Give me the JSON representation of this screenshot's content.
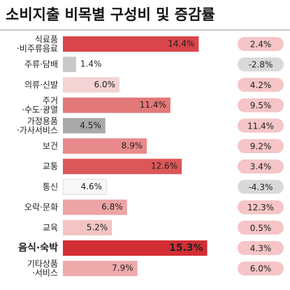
{
  "chart_data": {
    "type": "bar",
    "title": "소비지출 비목별 구성비 및 증감률",
    "categories": [
      "식료품\n·비주류음료",
      "주류·담배",
      "의류·신발",
      "주거\n·수도·광열",
      "가정용품\n·가사서비스",
      "보건",
      "교통",
      "통신",
      "오락·문화",
      "교육",
      "음식·숙박",
      "기타상품\n·서비스"
    ],
    "series": [
      {
        "values": [
          14.4,
          1.4,
          6.0,
          11.4,
          4.5,
          8.9,
          12.6,
          4.6,
          6.8,
          5.2,
          15.3,
          7.9
        ],
        "value_labels": [
          "14.4%",
          "1.4%",
          "6.0%",
          "11.4%",
          "4.5%",
          "8.9%",
          "12.6%",
          "4.6%",
          "6.8%",
          "5.2%",
          "15.3%",
          "7.9%"
        ],
        "colors": [
          "#d9454a",
          "#c9c9c9",
          "#f3d3d3",
          "#e27878",
          "#a9a9a9",
          "#e88a8b",
          "#dc5759",
          "#f8f8f8",
          "#eca4a4",
          "#f2c4c4",
          "#d32e34",
          "#eeaaab"
        ]
      },
      {
        "values": [
          2.4,
          -2.8,
          4.2,
          9.5,
          11.4,
          9.2,
          3.4,
          -4.3,
          12.3,
          0.5,
          4.3,
          6.0
        ],
        "value_labels": [
          "2.4%",
          "-2.8%",
          "4.2%",
          "9.5%",
          "11.4%",
          "9.2%",
          "3.4%",
          "-4.3%",
          "12.3%",
          "0.5%",
          "4.3%",
          "6.0%"
        ],
        "colors": [
          "#f5c5c7",
          "#d9d9d9"
        ]
      }
    ]
  }
}
